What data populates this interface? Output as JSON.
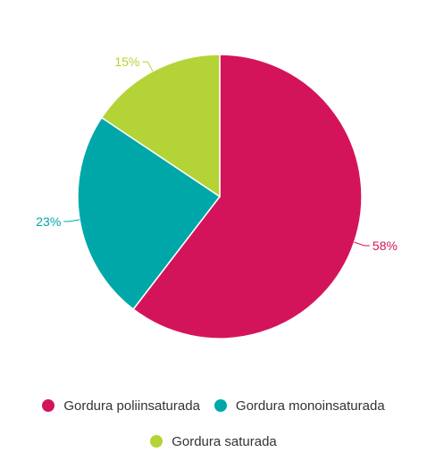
{
  "chart_data": {
    "type": "pie",
    "title": "",
    "categories": [
      "Gordura poliinsaturada",
      "Gordura monoinsaturada",
      "Gordura saturada"
    ],
    "values": [
      58,
      23,
      15
    ],
    "labels": [
      "58%",
      "23%",
      "15%"
    ],
    "colors": [
      "#D4145A",
      "#00A7A9",
      "#B4D336"
    ],
    "legend_position": "bottom"
  }
}
